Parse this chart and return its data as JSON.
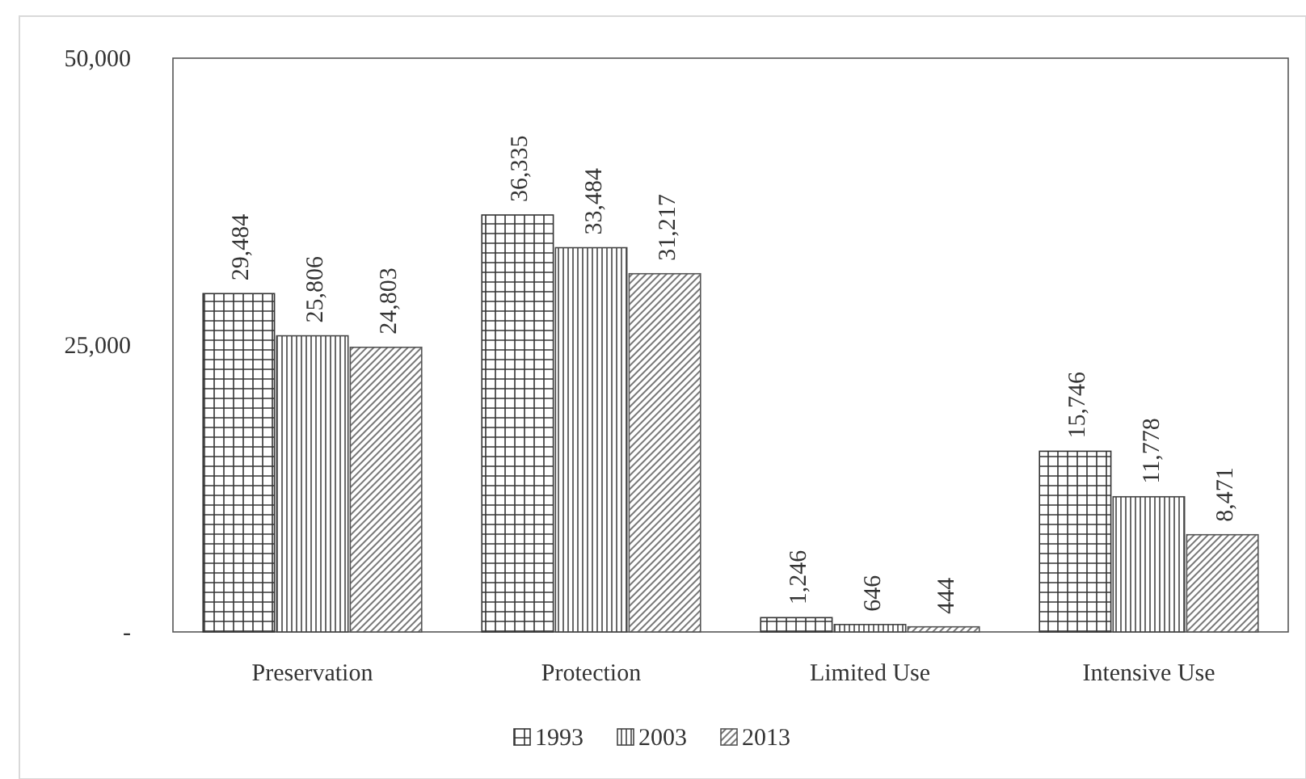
{
  "chart_data": {
    "type": "bar",
    "categories": [
      "Preservation",
      "Protection",
      "Limited Use",
      "Intensive Use"
    ],
    "series": [
      {
        "name": "1993",
        "color": "#333333",
        "values": [
          29484,
          36335,
          1246,
          15746
        ],
        "value_labels": [
          "29,484",
          "36,335",
          "1,246",
          "15,746"
        ]
      },
      {
        "name": "2003",
        "color": "#444444",
        "values": [
          25806,
          33484,
          646,
          11778
        ],
        "value_labels": [
          "25,806",
          "33,484",
          "646",
          "11,778"
        ]
      },
      {
        "name": "2013",
        "color": "#555555",
        "values": [
          24803,
          31217,
          444,
          8471
        ],
        "value_labels": [
          "24,803",
          "31,217",
          "444",
          "8,471"
        ]
      }
    ],
    "ylim": [
      0,
      50000
    ],
    "yticks": [
      {
        "value": 0,
        "label": "-"
      },
      {
        "value": 25000,
        "label": "25,000"
      },
      {
        "value": 50000,
        "label": "50,000"
      }
    ],
    "legend": "bottom"
  }
}
